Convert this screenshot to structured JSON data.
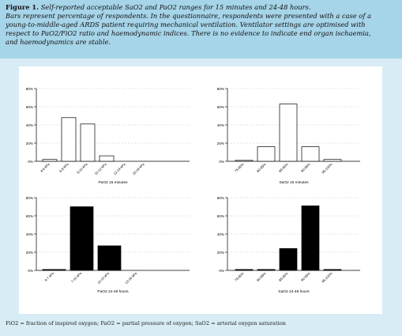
{
  "caption": {
    "figure_label": "Figure 1.",
    "title": "Self-reported acceptable SaO2 and PaO2 ranges for 15 minutes and 24-48 hours.",
    "lines": [
      "Bars represent percentage of respondents. In the questionnaire, respondents were presented with a case of a",
      "young-to-middle-aged ARDS patient requiring mechanical ventilation. Ventilator settings are optimised with",
      "respect to PaO2/FiO2 ratio and haemodynamic indices. There is no evidence to indicate end organ ischaemia,",
      "and haemodynamics are stable."
    ]
  },
  "footnote": "FiO2 = fraction of inspired oxygen; PaO2 = partial pressure of oxygen; SaO2 = arterial oxygen saturation",
  "chart_data": [
    {
      "type": "bar",
      "categories": [
        "4-6 kPa",
        "6-8 kPa",
        "8-10 kPa",
        "10-12 kPa",
        "12-14 kPa",
        "15-16 kPa"
      ],
      "values": [
        2,
        48,
        41,
        6,
        0,
        0
      ],
      "xlabel": "PaO2 15 minutes",
      "ylim": [
        0,
        80
      ],
      "yticks": [
        "0%",
        "20%",
        "40%",
        "60%",
        "80%"
      ],
      "bar_color": "#ffffff",
      "grid": "dashed horizontal"
    },
    {
      "type": "bar",
      "categories": [
        "75-80%",
        "80-85%",
        "85-90%",
        "90-95%",
        "95-100%"
      ],
      "values": [
        1,
        16,
        63,
        16,
        2
      ],
      "xlabel": "SaO2 15 minutes",
      "ylim": [
        0,
        80
      ],
      "yticks": [
        "0%",
        "20%",
        "40%",
        "60%",
        "80%"
      ],
      "bar_color": "#ffffff",
      "grid": "dashed horizontal"
    },
    {
      "type": "bar",
      "categories": [
        "4-7 kPa",
        "7-10 kPa",
        "10-13 kPa",
        "13-16 kPa"
      ],
      "values": [
        1,
        70,
        27,
        0
      ],
      "xlabel": "PaO2 24-48 hours",
      "ylim": [
        0,
        80
      ],
      "yticks": [
        "0%",
        "20%",
        "40%",
        "60%",
        "80%"
      ],
      "bar_color": "#000000",
      "grid": "dashed horizontal"
    },
    {
      "type": "bar",
      "categories": [
        "75-80%",
        "80-85%",
        "85-90%",
        "90-95%",
        "95-100%"
      ],
      "values": [
        1,
        1,
        24,
        71,
        1
      ],
      "xlabel": "SaO2 24-48 hours",
      "ylim": [
        0,
        80
      ],
      "yticks": [
        "0%",
        "20%",
        "40%",
        "60%",
        "80%"
      ],
      "bar_color": "#000000",
      "grid": "dashed horizontal"
    }
  ]
}
